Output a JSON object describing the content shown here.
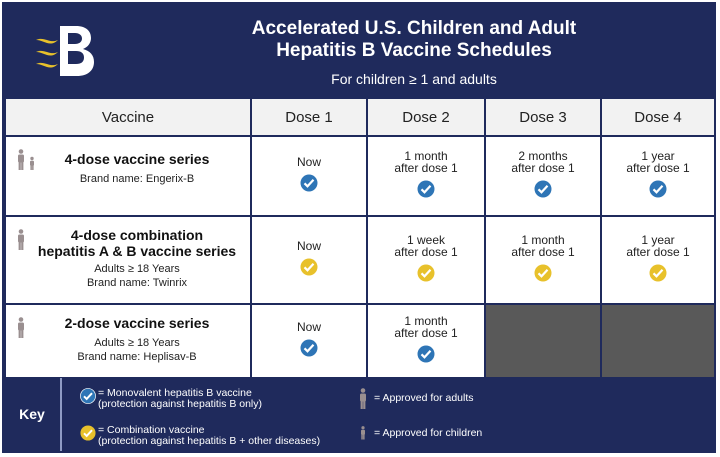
{
  "header": {
    "title_line1": "Accelerated U.S. Children and Adult",
    "title_line2": "Hepatitis B Vaccine Schedules",
    "subtitle": "For children ≥ 1 and adults"
  },
  "table": {
    "headers": [
      "Vaccine",
      "Dose 1",
      "Dose 2",
      "Dose 3",
      "Dose 4"
    ],
    "rows": [
      {
        "name": "4-dose vaccine series",
        "sub": [
          "Brand name: Engerix-B"
        ],
        "approved_for": [
          "adults",
          "children"
        ],
        "check_color": "#2e75b6",
        "doses": [
          [
            "Now"
          ],
          [
            "1 month",
            "after dose 1"
          ],
          [
            "2 months",
            "after dose 1"
          ],
          [
            "1 year",
            "after dose 1"
          ]
        ]
      },
      {
        "name_line1": "4-dose combination",
        "name_line2": "hepatitis A & B vaccine series",
        "sub": [
          "Adults ≥ 18 Years",
          "Brand name: Twinrix"
        ],
        "approved_for": [
          "adults"
        ],
        "check_color": "#e8c12b",
        "doses": [
          [
            "Now"
          ],
          [
            "1 week",
            "after dose 1"
          ],
          [
            "1 month",
            "after dose 1"
          ],
          [
            "1 year",
            "after dose 1"
          ]
        ]
      },
      {
        "name": "2-dose vaccine series",
        "sub": [
          "Adults ≥ 18 Years",
          "Brand name: Heplisav-B"
        ],
        "approved_for": [
          "adults"
        ],
        "check_color": "#2e75b6",
        "doses": [
          [
            "Now"
          ],
          [
            "1 month",
            "after dose 1"
          ]
        ]
      }
    ]
  },
  "key": {
    "label": "Key",
    "monovalent_line1": "= Monovalent hepatitis B vaccine",
    "monovalent_line2": "(protection against hepatitis B only)",
    "combination_line1": "= Combination vaccine",
    "combination_line2": "(protection against hepatitis B + other diseases)",
    "adults": "= Approved for adults",
    "children": "= Approved for children"
  },
  "colors": {
    "navy": "#1f2a5c",
    "blue_check": "#2e75b6",
    "yellow_check": "#e8c12b",
    "empty_cell": "#595959",
    "person_icon": "#9a8f90"
  },
  "icons": [
    "logo-b-icon",
    "checkmark-blue-icon",
    "checkmark-yellow-icon",
    "adult-person-icon",
    "child-person-icon"
  ]
}
